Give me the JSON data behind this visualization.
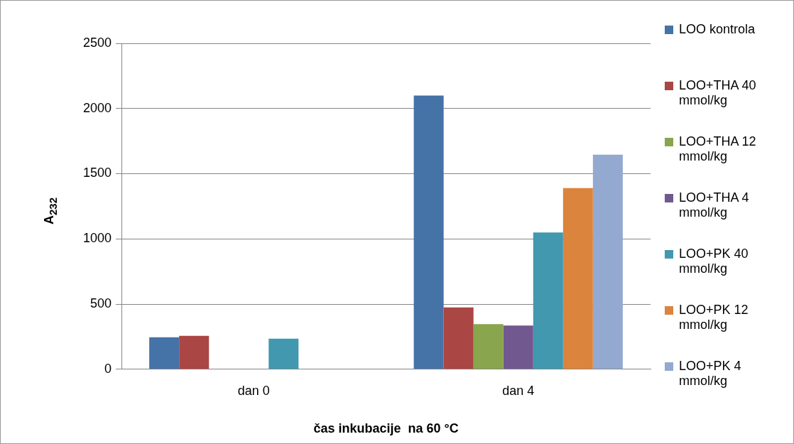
{
  "chart_data": {
    "type": "bar",
    "xlabel": "čas inkubacije  na 60 °C",
    "ylabel": "A$_{232}$",
    "categories": [
      "dan 0",
      "dan 4"
    ],
    "series": [
      {
        "name": "LOO kontrola",
        "color": "#4572a7",
        "values": [
          245,
          2100
        ]
      },
      {
        "name": "LOO+THA 40 mmol/kg",
        "color": "#aa4643",
        "values": [
          257,
          474
        ]
      },
      {
        "name": "LOO+THA 12 mmol/kg",
        "color": "#89a54e",
        "values": [
          null,
          346
        ]
      },
      {
        "name": "LOO+THA 4 mmol/kg",
        "color": "#71588f",
        "values": [
          null,
          335
        ]
      },
      {
        "name": "LOO+PK 40 mmol/kg",
        "color": "#4198af",
        "values": [
          234,
          1049
        ]
      },
      {
        "name": "LOO+PK 12 mmol/kg",
        "color": "#db843d",
        "values": [
          null,
          1390
        ]
      },
      {
        "name": "LOO+PK 4 mmol/kg",
        "color": "#93a9cf",
        "values": [
          null,
          1646
        ]
      }
    ],
    "ylim": [
      0,
      2500
    ],
    "yticks": [
      0,
      500,
      1000,
      1500,
      2000,
      2500
    ],
    "grid": "y",
    "legend": "right"
  }
}
